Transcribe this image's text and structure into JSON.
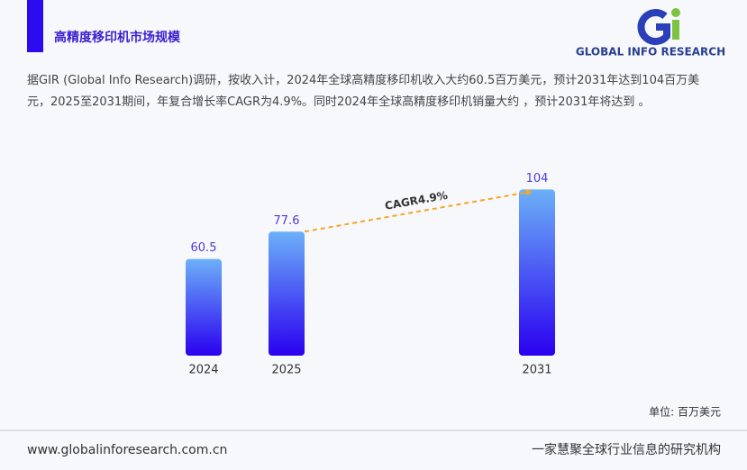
{
  "header": {
    "title": "高精度移印机市场规模",
    "logo": "GLOBAL INFO RESEARCH"
  },
  "intro": "据GIR (Global Info Research)调研，按收入计，2024年全球高精度移印机收入大约60.5百万美元，预计2031年达到104百万美元，2025至2031期间，年复合增长率CAGR为4.9%。同时2024年全球高精度移印机销量大约 ，预计2031年将达到 。",
  "chart_data": {
    "type": "bar",
    "categories": [
      "2024",
      "2025",
      "2031"
    ],
    "values": [
      60.5,
      77.6,
      104
    ],
    "annotation": "CAGR4.9%",
    "unit_label": "单位: 百万美元",
    "color": "#2a00f0"
  },
  "footer": {
    "url": "www.globalinforesearch.com.cn",
    "slogan": "一家慧聚全球行业信息的研究机构"
  }
}
